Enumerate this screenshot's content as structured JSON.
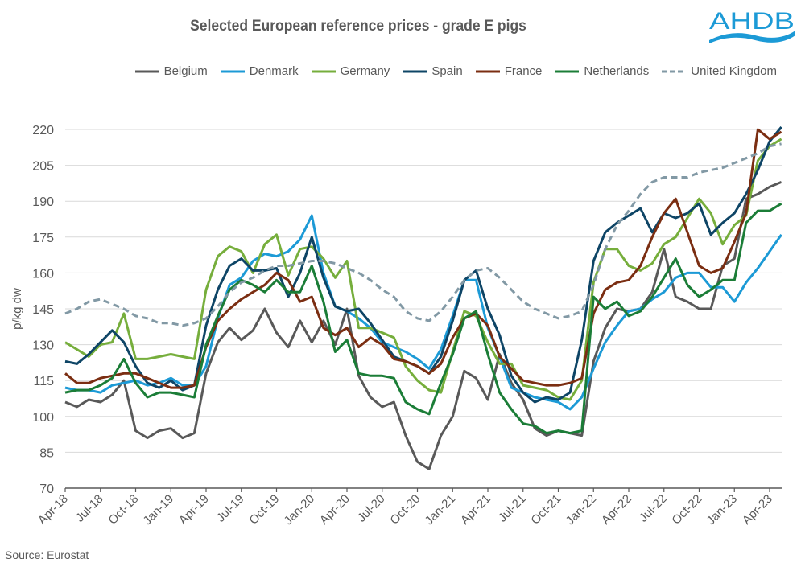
{
  "logo": {
    "text": "AHDB",
    "color": "#1C9AD6"
  },
  "source": "Source: Eurostat",
  "chart_data": {
    "type": "line",
    "title": "Selected European reference prices - grade E pigs",
    "xlabel": "",
    "ylabel": "p/kg dw",
    "ylim": [
      70,
      220
    ],
    "yticks": [
      70,
      85,
      100,
      115,
      130,
      145,
      160,
      175,
      190,
      205,
      220
    ],
    "xticks": [
      "Apr-18",
      "Jul-18",
      "Oct-18",
      "Jan-19",
      "Apr-19",
      "Jul-19",
      "Oct-19",
      "Jan-20",
      "Apr-20",
      "Jul-20",
      "Oct-20",
      "Jan-21",
      "Apr-21",
      "Jul-21",
      "Oct-21",
      "Jan-22",
      "Apr-22",
      "Jul-22",
      "Oct-22",
      "Jan-23",
      "Apr-23"
    ],
    "x_unit": "months since Apr-18",
    "grid": true,
    "legend_position": "top",
    "series": [
      {
        "name": "Belgium",
        "color": "#595959",
        "dash": false,
        "values": [
          106,
          104,
          107,
          106,
          109,
          115,
          94,
          91,
          94,
          95,
          91,
          93,
          118,
          131,
          137,
          132,
          136,
          145,
          135,
          129,
          140,
          131,
          140,
          130,
          145,
          117,
          108,
          104,
          106,
          92,
          81,
          78,
          92,
          100,
          119,
          116,
          107,
          126,
          114,
          107,
          95,
          92,
          94,
          93,
          92,
          123,
          137,
          145,
          144,
          145,
          152,
          170,
          150,
          148,
          145,
          145,
          163,
          166,
          191,
          193,
          196,
          198
        ]
      },
      {
        "name": "Denmark",
        "color": "#1C9AD6",
        "dash": false,
        "values": [
          112,
          111,
          111,
          110,
          113,
          114,
          115,
          113,
          114,
          116,
          113,
          113,
          121,
          141,
          155,
          158,
          165,
          168,
          167,
          169,
          174,
          184,
          160,
          146,
          144,
          141,
          137,
          131,
          129,
          127,
          124,
          120,
          128,
          142,
          157,
          157,
          137,
          125,
          112,
          110,
          108,
          107,
          106,
          103,
          108,
          120,
          131,
          138,
          144,
          145,
          149,
          152,
          158,
          160,
          160,
          154,
          154,
          148,
          156,
          162,
          169,
          176
        ]
      },
      {
        "name": "Germany",
        "color": "#76AE3C",
        "dash": false,
        "values": [
          131,
          128,
          125,
          130,
          131,
          143,
          124,
          124,
          125,
          126,
          125,
          124,
          153,
          167,
          171,
          169,
          160,
          172,
          176,
          159,
          170,
          171,
          166,
          158,
          165,
          137,
          137,
          135,
          133,
          121,
          115,
          111,
          110,
          127,
          144,
          142,
          131,
          122,
          122,
          113,
          112,
          111,
          108,
          107,
          115,
          156,
          170,
          170,
          163,
          161,
          164,
          172,
          175,
          183,
          191,
          185,
          172,
          180,
          184,
          207,
          213,
          216
        ]
      },
      {
        "name": "Spain",
        "color": "#0E4566",
        "dash": false,
        "values": [
          123,
          122,
          126,
          131,
          136,
          131,
          121,
          114,
          112,
          115,
          111,
          113,
          138,
          153,
          163,
          166,
          161,
          161,
          162,
          150,
          160,
          175,
          158,
          146,
          144,
          145,
          139,
          132,
          125,
          123,
          121,
          118,
          125,
          140,
          157,
          161,
          145,
          134,
          117,
          110,
          106,
          108,
          107,
          110,
          132,
          165,
          177,
          181,
          184,
          187,
          177,
          185,
          183,
          185,
          189,
          176,
          181,
          185,
          193,
          203,
          215,
          221
        ]
      },
      {
        "name": "France",
        "color": "#7B2E12",
        "dash": false,
        "values": [
          118,
          114,
          114,
          116,
          117,
          118,
          118,
          116,
          114,
          112,
          112,
          113,
          129,
          140,
          145,
          149,
          152,
          155,
          160,
          157,
          148,
          150,
          137,
          134,
          137,
          129,
          133,
          130,
          124,
          123,
          121,
          118,
          122,
          133,
          141,
          143,
          138,
          125,
          120,
          115,
          114,
          113,
          113,
          114,
          116,
          143,
          153,
          156,
          157,
          163,
          175,
          185,
          191,
          177,
          163,
          160,
          162,
          173,
          185,
          220,
          216,
          219
        ]
      },
      {
        "name": "Netherlands",
        "color": "#1B7D37",
        "dash": false,
        "values": [
          110,
          111,
          111,
          113,
          116,
          124,
          114,
          108,
          110,
          110,
          109,
          108,
          130,
          142,
          153,
          157,
          155,
          152,
          157,
          152,
          152,
          163,
          148,
          127,
          132,
          118,
          117,
          117,
          116,
          106,
          103,
          101,
          114,
          126,
          141,
          144,
          126,
          110,
          103,
          97,
          96,
          93,
          94,
          93,
          94,
          150,
          145,
          148,
          142,
          144,
          150,
          158,
          166,
          155,
          150,
          153,
          157,
          157,
          181,
          186,
          186,
          189
        ]
      },
      {
        "name": "United Kingdom",
        "color": "#8299A5",
        "dash": true,
        "values": [
          143,
          145,
          148,
          149,
          147,
          145,
          142,
          141,
          139,
          139,
          138,
          139,
          141,
          146,
          152,
          156,
          158,
          161,
          163,
          163,
          164,
          165,
          165,
          164,
          162,
          160,
          157,
          153,
          150,
          144,
          141,
          140,
          144,
          150,
          157,
          161,
          162,
          158,
          153,
          148,
          145,
          143,
          141,
          142,
          144,
          155,
          170,
          180,
          186,
          193,
          198,
          200,
          200,
          200,
          202,
          203,
          204,
          206,
          208,
          210,
          213,
          214
        ]
      }
    ]
  }
}
